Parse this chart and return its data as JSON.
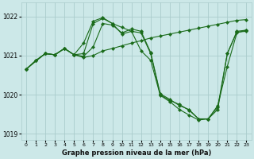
{
  "background_color": "#cce8e8",
  "grid_color": "#aacccc",
  "line_color": "#1a6b1a",
  "marker_color": "#1a6b1a",
  "title": "Graphe pression niveau de la mer (hPa)",
  "xlim": [
    -0.5,
    23.5
  ],
  "ylim": [
    1018.85,
    1022.35
  ],
  "yticks": [
    1019,
    1020,
    1021,
    1022
  ],
  "xticks": [
    0,
    1,
    2,
    3,
    4,
    5,
    6,
    7,
    8,
    9,
    10,
    11,
    12,
    13,
    14,
    15,
    16,
    17,
    18,
    19,
    20,
    21,
    22,
    23
  ],
  "series": [
    {
      "x": [
        0,
        1,
        2,
        3,
        4,
        5,
        6,
        7,
        8,
        9,
        10,
        11,
        12,
        13,
        14,
        15,
        16,
        17,
        18,
        19,
        20,
        21,
        22,
        23
      ],
      "y": [
        1020.65,
        1020.87,
        1021.05,
        1021.02,
        1021.18,
        1021.02,
        1021.05,
        1021.82,
        1021.95,
        1021.82,
        1021.55,
        1021.62,
        1021.58,
        1021.05,
        1020.0,
        1019.85,
        1019.75,
        1019.6,
        1019.38,
        1019.38,
        1019.62,
        1021.05,
        1021.6,
        1021.62
      ]
    },
    {
      "x": [
        0,
        1,
        2,
        3,
        4,
        5,
        6,
        7,
        8,
        9,
        10,
        11,
        12,
        13,
        14,
        15,
        16,
        17,
        18,
        19,
        20,
        21,
        22,
        23
      ],
      "y": [
        1020.65,
        1020.87,
        1021.05,
        1021.02,
        1021.18,
        1021.02,
        1020.98,
        1021.22,
        1021.82,
        1021.78,
        1021.58,
        1021.68,
        1021.62,
        1021.08,
        1020.02,
        1019.88,
        1019.72,
        1019.62,
        1019.38,
        1019.38,
        1019.68,
        1021.05,
        1021.62,
        1021.65
      ]
    },
    {
      "x": [
        0,
        2,
        3,
        4,
        5,
        6,
        7,
        8,
        9,
        10,
        11,
        12,
        13,
        14,
        15,
        16,
        17,
        18,
        19,
        20,
        21,
        22,
        23
      ],
      "y": [
        1020.65,
        1021.05,
        1021.02,
        1021.18,
        1021.02,
        1021.32,
        1021.88,
        1021.97,
        1021.82,
        1021.72,
        1021.62,
        1021.12,
        1020.88,
        1019.98,
        1019.82,
        1019.62,
        1019.48,
        1019.35,
        1019.38,
        1019.72,
        1020.72,
        1021.58,
        1021.65
      ]
    },
    {
      "x": [
        0,
        1,
        2,
        3,
        4,
        5,
        6,
        7,
        8,
        9,
        10,
        11,
        12,
        13,
        14,
        15,
        16,
        17,
        18,
        19,
        20,
        21,
        22,
        23
      ],
      "y": [
        1020.65,
        1020.87,
        1021.05,
        1021.02,
        1021.18,
        1021.02,
        1020.95,
        1021.0,
        1021.12,
        1021.18,
        1021.25,
        1021.32,
        1021.38,
        1021.45,
        1021.5,
        1021.55,
        1021.6,
        1021.65,
        1021.7,
        1021.75,
        1021.8,
        1021.85,
        1021.9,
        1021.92
      ]
    }
  ]
}
